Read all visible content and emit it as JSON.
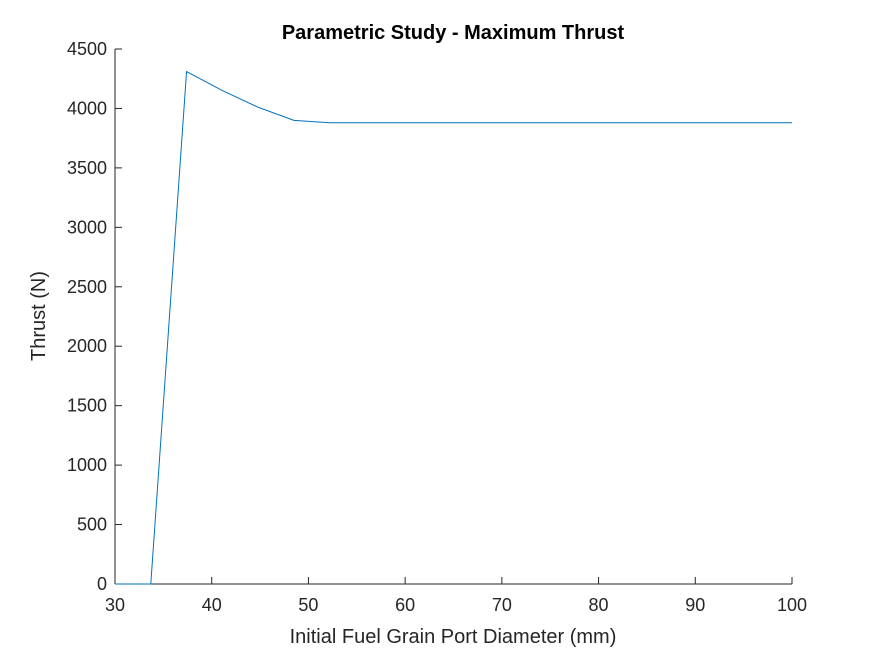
{
  "chart_data": {
    "type": "line",
    "title": "Parametric Study - Maximum Thrust",
    "xlabel": "Initial Fuel Grain Port Diameter (mm)",
    "ylabel": "Thrust (N)",
    "xlim": [
      30,
      100
    ],
    "ylim": [
      0,
      4500
    ],
    "xticks": [
      "30",
      "40",
      "50",
      "60",
      "70",
      "80",
      "90",
      "100"
    ],
    "yticks": [
      "0",
      "500",
      "1000",
      "1500",
      "2000",
      "2500",
      "3000",
      "3500",
      "4000",
      "4500"
    ],
    "grid": false,
    "legend": "none",
    "series": [
      {
        "color": "#0072BD",
        "x": [
          30,
          33.7,
          37.4,
          41.1,
          44.8,
          48.5,
          52.2,
          55.9,
          59.6,
          63.3,
          67,
          70.7,
          74.4,
          78.1,
          81.8,
          85.5,
          89.2,
          92.9,
          96.6,
          100
        ],
        "y": [
          0,
          0,
          4310,
          4150,
          4010,
          3900,
          3880,
          3880,
          3880,
          3880,
          3880,
          3880,
          3880,
          3880,
          3880,
          3880,
          3880,
          3880,
          3880,
          3880
        ]
      }
    ]
  }
}
